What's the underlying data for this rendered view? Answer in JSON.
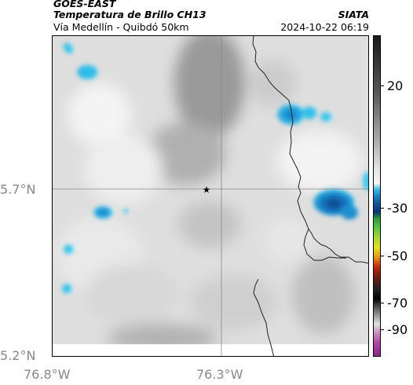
{
  "header": {
    "satellite": "GOES-EAST",
    "product": "Temperatura de Brillo CH13",
    "subtitle": "Vía Medellín - Quibdó 50km",
    "organization": "SIATA",
    "timestamp": "2024-10-22 06:19"
  },
  "map": {
    "center_marker": "star-marker",
    "crosshair": true,
    "lat_labels": [
      "5.7°N",
      "5.2°N"
    ],
    "lon_labels": [
      "76.8°W",
      "76.3°W"
    ]
  },
  "colorbar": {
    "labels": [
      "20",
      "-30",
      "-50",
      "-70",
      "-90"
    ],
    "colors": {
      "dark_gray": "#1a1a1a",
      "light_gray": "#f2f2f2",
      "cyan": "#29c9ee",
      "blue": "#1163a8",
      "green": "#3fc83a",
      "yellow": "#e4e21e",
      "red": "#c62a14",
      "black": "#111111",
      "magenta": "#b043a5"
    }
  }
}
